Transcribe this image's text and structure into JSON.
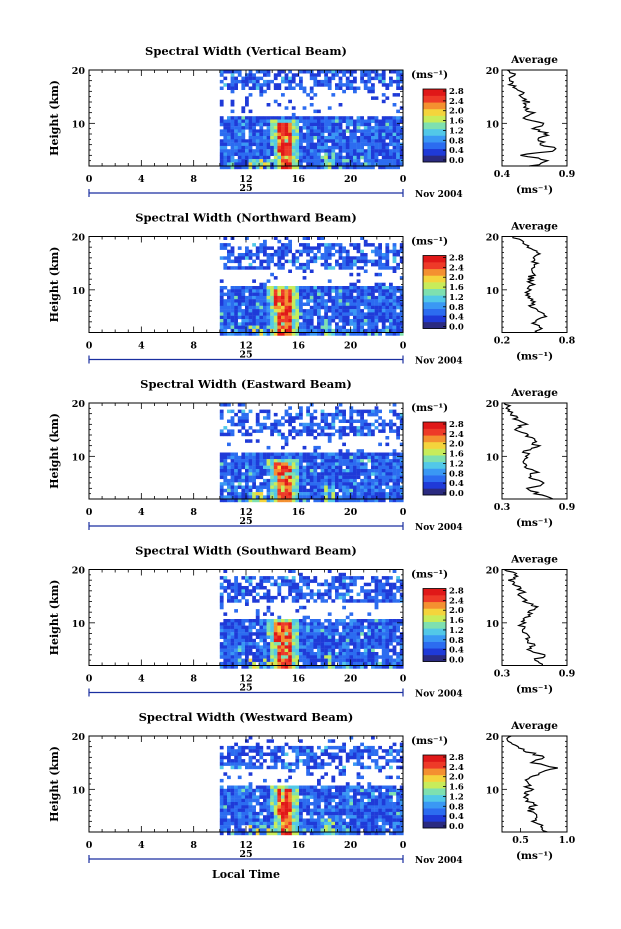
{
  "shared": {
    "height_label": "Height (km)",
    "time_ticks": [
      "0",
      "4",
      "8",
      "12",
      "16",
      "20",
      "0"
    ],
    "date_day": "25",
    "date_month_year": "Nov 2004",
    "unit_label": "(ms⁻¹)",
    "colorbar_ticks": [
      "0.0",
      "0.4",
      "0.8",
      "1.2",
      "1.6",
      "2.0",
      "2.4",
      "2.8"
    ],
    "avg_title": "Average",
    "avg_unit": "(ms⁻¹)",
    "y_ticks": [
      "20",
      "10"
    ],
    "xlabel": "Local Time"
  },
  "colors": {
    "scale": [
      "#2a2a80",
      "#1f3ad8",
      "#2c6cf0",
      "#3a98f4",
      "#52c8e8",
      "#7ee0b0",
      "#c8ec5a",
      "#f4d43c",
      "#f49030",
      "#ee3a28",
      "#e01818"
    ]
  },
  "chart_data": [
    {
      "type": "heatmap",
      "title": "Spectral Width (Vertical Beam)",
      "x_range": [
        0,
        24
      ],
      "y_range": [
        2,
        20
      ],
      "data_start_hour": 10,
      "colorbar_range": [
        0.0,
        2.8
      ],
      "features": {
        "convective_core_hours": [
          14.5,
          15.5
        ],
        "core_top_km": 10,
        "upper_cloud_km": [
          16,
          20
        ],
        "gap_km": [
          11.5,
          13
        ]
      },
      "average_profile": {
        "xlim": [
          0.4,
          0.9
        ],
        "xticks": [
          "0.4",
          "0.9"
        ],
        "height_km": [
          2,
          3,
          4,
          5,
          6,
          7,
          8,
          9,
          10,
          11,
          12,
          13,
          14,
          15,
          16,
          17,
          18,
          19,
          20
        ],
        "value": [
          0.62,
          0.78,
          0.55,
          0.83,
          0.72,
          0.68,
          0.74,
          0.66,
          0.7,
          0.58,
          0.64,
          0.55,
          0.6,
          0.52,
          0.57,
          0.48,
          0.45,
          0.5,
          0.44
        ]
      }
    },
    {
      "type": "heatmap",
      "title": "Spectral Width (Northward Beam)",
      "x_range": [
        0,
        24
      ],
      "y_range": [
        2,
        20
      ],
      "data_start_hour": 10,
      "colorbar_range": [
        0.0,
        2.8
      ],
      "features": {
        "convective_core_hours": [
          14.3,
          15.5
        ],
        "core_top_km": 10,
        "upper_cloud_km": [
          14,
          19
        ],
        "gap_km": [
          10.5,
          13
        ]
      },
      "average_profile": {
        "xlim": [
          0.2,
          0.8
        ],
        "xticks": [
          "0.2",
          "0.8"
        ],
        "height_km": [
          2,
          3,
          4,
          5,
          6,
          7,
          8,
          9,
          10,
          11,
          12,
          13,
          14,
          15,
          16,
          17,
          18,
          19,
          20
        ],
        "value": [
          0.5,
          0.56,
          0.48,
          0.62,
          0.53,
          0.47,
          0.5,
          0.44,
          0.46,
          0.49,
          0.45,
          0.5,
          0.47,
          0.52,
          0.48,
          0.55,
          0.46,
          0.4,
          0.3
        ]
      }
    },
    {
      "type": "heatmap",
      "title": "Spectral Width (Eastward Beam)",
      "x_range": [
        0,
        24
      ],
      "y_range": [
        2,
        20
      ],
      "data_start_hour": 10,
      "colorbar_range": [
        0.0,
        2.8
      ],
      "features": {
        "convective_core_hours": [
          14.3,
          15.3
        ],
        "core_top_km": 9,
        "upper_cloud_km": [
          14,
          19
        ],
        "gap_km": [
          10.5,
          13
        ]
      },
      "average_profile": {
        "xlim": [
          0.3,
          0.9
        ],
        "xticks": [
          "0.3",
          "0.9"
        ],
        "height_km": [
          2,
          3,
          4,
          5,
          6,
          7,
          8,
          9,
          10,
          11,
          12,
          13,
          14,
          15,
          16,
          17,
          18,
          19,
          20
        ],
        "value": [
          0.76,
          0.62,
          0.55,
          0.7,
          0.58,
          0.6,
          0.52,
          0.5,
          0.55,
          0.5,
          0.62,
          0.58,
          0.55,
          0.45,
          0.5,
          0.44,
          0.4,
          0.36,
          0.32
        ]
      }
    },
    {
      "type": "heatmap",
      "title": "Spectral Width (Southward Beam)",
      "x_range": [
        0,
        24
      ],
      "y_range": [
        2,
        20
      ],
      "data_start_hour": 10,
      "colorbar_range": [
        0.0,
        2.8
      ],
      "features": {
        "convective_core_hours": [
          14.3,
          15.4
        ],
        "core_top_km": 10,
        "upper_cloud_km": [
          14,
          19
        ],
        "gap_km": [
          10.5,
          13
        ]
      },
      "average_profile": {
        "xlim": [
          0.3,
          0.9
        ],
        "xticks": [
          "0.3",
          "0.9"
        ],
        "height_km": [
          2,
          3,
          4,
          5,
          6,
          7,
          8,
          9,
          10,
          11,
          12,
          13,
          14,
          15,
          16,
          17,
          18,
          19,
          20
        ],
        "value": [
          0.7,
          0.62,
          0.68,
          0.55,
          0.58,
          0.53,
          0.52,
          0.48,
          0.5,
          0.54,
          0.57,
          0.6,
          0.52,
          0.46,
          0.5,
          0.42,
          0.38,
          0.44,
          0.32
        ]
      }
    },
    {
      "type": "heatmap",
      "title": "Spectral Width (Westward Beam)",
      "x_range": [
        0,
        24
      ],
      "y_range": [
        2,
        20
      ],
      "data_start_hour": 10,
      "colorbar_range": [
        0.0,
        2.8
      ],
      "features": {
        "convective_core_hours": [
          14.5,
          15.5
        ],
        "core_top_km": 10,
        "upper_cloud_km": [
          14,
          18
        ],
        "gap_km": [
          10.5,
          13
        ]
      },
      "average_profile": {
        "xlim": [
          0.3,
          1.0
        ],
        "xticks": [
          "0.5",
          "1.0"
        ],
        "height_km": [
          2,
          3,
          4,
          5,
          6,
          7,
          8,
          9,
          10,
          11,
          12,
          13,
          14,
          15,
          16,
          17,
          18,
          19,
          20
        ],
        "value": [
          0.8,
          0.72,
          0.62,
          0.68,
          0.6,
          0.64,
          0.58,
          0.55,
          0.6,
          0.56,
          0.58,
          0.7,
          0.86,
          0.64,
          0.76,
          0.58,
          0.48,
          0.38,
          0.4
        ]
      }
    }
  ]
}
